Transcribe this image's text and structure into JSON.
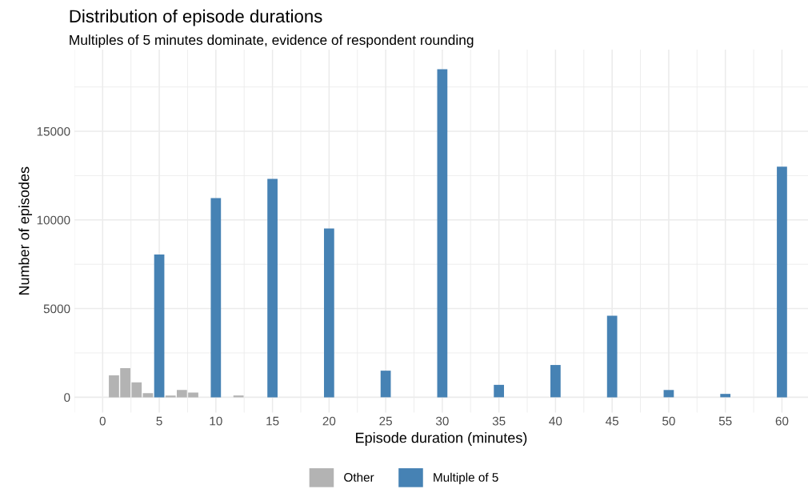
{
  "chart_data": {
    "type": "bar",
    "title": "Distribution of episode durations",
    "subtitle": "Multiples of 5 minutes dominate, evidence of respondent rounding",
    "xlabel": "Episode duration (minutes)",
    "ylabel": "Number of episodes",
    "series": [
      {
        "name": "Other",
        "color": "#b3b3b3",
        "x": [
          1,
          2,
          3,
          4,
          6,
          7,
          8,
          12
        ],
        "values": [
          1230,
          1640,
          840,
          230,
          100,
          410,
          270,
          100
        ]
      },
      {
        "name": "Multiple of 5",
        "color": "#4682b4",
        "x": [
          5,
          10,
          15,
          20,
          25,
          30,
          35,
          40,
          45,
          50,
          55,
          60
        ],
        "values": [
          8050,
          11230,
          12320,
          9520,
          1500,
          18500,
          700,
          1820,
          4600,
          410,
          190,
          13000
        ]
      }
    ],
    "xlim": [
      -2.5,
      62.3
    ],
    "xticks": [
      0,
      5,
      10,
      15,
      20,
      25,
      30,
      35,
      40,
      45,
      50,
      55,
      60
    ],
    "ylim": [
      -860,
      19600
    ],
    "yticks": [
      0,
      5000,
      10000,
      15000
    ],
    "grid": true,
    "legend": "bottom"
  }
}
